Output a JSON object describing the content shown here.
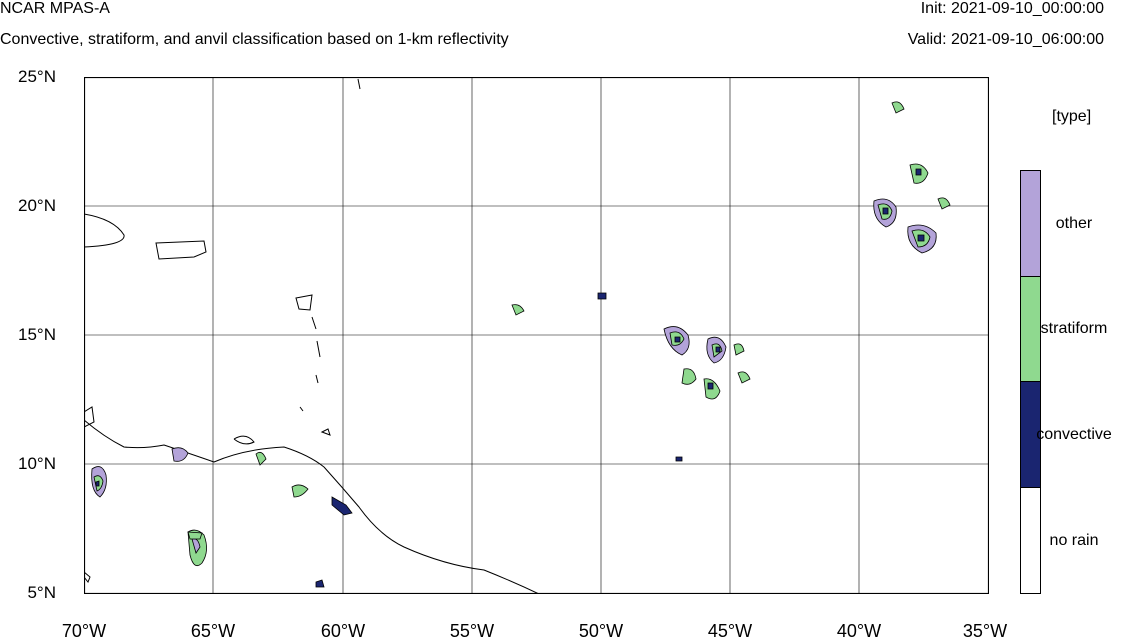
{
  "header": {
    "model": "NCAR MPAS-A",
    "description": "Convective, stratiform, and anvil classification based on 1-km reflectivity",
    "init": "Init: 2021-09-10_00:00:00",
    "valid": "Valid: 2021-09-10_06:00:00"
  },
  "axes": {
    "lat_labels": [
      "25°N",
      "20°N",
      "15°N",
      "10°N",
      "5°N"
    ],
    "lon_labels": [
      "70°W",
      "65°W",
      "60°W",
      "55°W",
      "50°W",
      "45°W",
      "40°W",
      "35°W"
    ],
    "lon_range": [
      -70,
      -35
    ],
    "lat_range": [
      5,
      25
    ],
    "grid": true
  },
  "legend": {
    "title": "[type]",
    "items": [
      {
        "label": "other",
        "color": "#b3a3d9"
      },
      {
        "label": "stratiform",
        "color": "#8fd98f"
      },
      {
        "label": "convective",
        "color": "#1a2570"
      },
      {
        "label": "no rain",
        "color": "#ffffff"
      }
    ]
  },
  "colors": {
    "other": "#b3a3d9",
    "stratiform": "#8fd98f",
    "convective": "#1a2570",
    "coastline": "#000000"
  }
}
